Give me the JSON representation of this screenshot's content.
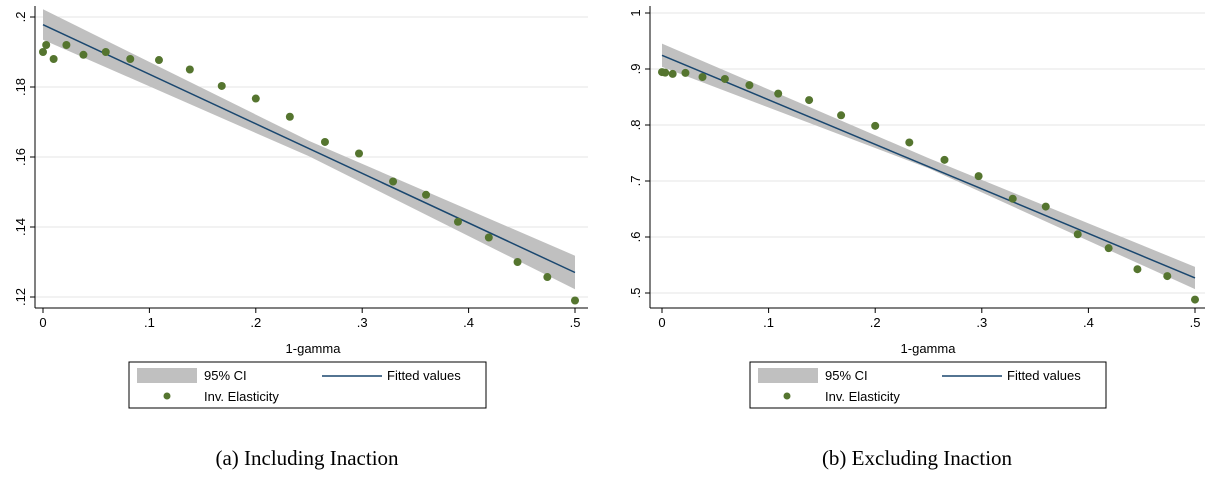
{
  "chart_data": [
    {
      "type": "scatter",
      "caption": "(a) Including Inaction",
      "xlabel": "1-gamma",
      "ylabel": "",
      "xlim": [
        0,
        0.5
      ],
      "ylim": [
        0.12,
        0.2
      ],
      "xticks": [
        0,
        0.1,
        0.2,
        0.3,
        0.4,
        0.5
      ],
      "xtick_labels": [
        "0",
        ".1",
        ".2",
        ".3",
        ".4",
        ".5"
      ],
      "yticks": [
        0.12,
        0.14,
        0.16,
        0.18,
        0.2
      ],
      "ytick_labels": [
        ".12",
        ".14",
        ".16",
        ".18",
        ".2"
      ],
      "grid": true,
      "legend_placement": "bottom",
      "legend": {
        "ci_label": "95% CI",
        "fit_label": "Fitted values",
        "scatter_label": "Inv. Elasticity"
      },
      "fit": {
        "x": [
          0,
          0.5
        ],
        "y": [
          0.1978,
          0.127
        ]
      },
      "ci_upper": {
        "x": [
          0,
          0.25,
          0.5
        ],
        "y": [
          0.2022,
          0.1646,
          0.1318
        ]
      },
      "ci_lower": {
        "x": [
          0,
          0.25,
          0.5
        ],
        "y": [
          0.1935,
          0.1602,
          0.1222
        ]
      },
      "points": {
        "x": [
          0.0,
          0.003,
          0.01,
          0.022,
          0.038,
          0.059,
          0.082,
          0.109,
          0.138,
          0.168,
          0.2,
          0.232,
          0.265,
          0.297,
          0.329,
          0.36,
          0.39,
          0.419,
          0.446,
          0.474,
          0.5
        ],
        "y": [
          0.19,
          0.192,
          0.188,
          0.192,
          0.1892,
          0.19,
          0.188,
          0.1877,
          0.185,
          0.1803,
          0.1767,
          0.1715,
          0.1643,
          0.161,
          0.153,
          0.1492,
          0.1415,
          0.137,
          0.13,
          0.1257,
          0.119
        ]
      },
      "colors": {
        "ci": "#c0c0c0",
        "fit": "#1a476f",
        "points": "#55752f",
        "grid": "#e6e6e6"
      }
    },
    {
      "type": "scatter",
      "caption": "(b) Excluding Inaction",
      "xlabel": "1-gamma",
      "ylabel": "",
      "xlim": [
        0,
        0.5
      ],
      "ylim": [
        0.5,
        1.0
      ],
      "xticks": [
        0,
        0.1,
        0.2,
        0.3,
        0.4,
        0.5
      ],
      "xtick_labels": [
        "0",
        ".1",
        ".2",
        ".3",
        ".4",
        ".5"
      ],
      "yticks": [
        0.5,
        0.6,
        0.7,
        0.8,
        0.9,
        1.0
      ],
      "ytick_labels": [
        ".5",
        ".6",
        ".7",
        ".8",
        ".9",
        "1"
      ],
      "grid": true,
      "legend_placement": "bottom",
      "legend": {
        "ci_label": "95% CI",
        "fit_label": "Fitted values",
        "scatter_label": "Inv. Elasticity"
      },
      "fit": {
        "x": [
          0,
          0.5
        ],
        "y": [
          0.9245,
          0.5268
        ]
      },
      "ci_upper": {
        "x": [
          0,
          0.25,
          0.5
        ],
        "y": [
          0.9453,
          0.7408,
          0.5467
        ]
      },
      "ci_lower": {
        "x": [
          0,
          0.25,
          0.5
        ],
        "y": [
          0.9037,
          0.7227,
          0.5069
        ]
      },
      "points": {
        "x": [
          0.0,
          0.003,
          0.01,
          0.022,
          0.038,
          0.059,
          0.082,
          0.109,
          0.138,
          0.168,
          0.2,
          0.232,
          0.265,
          0.297,
          0.329,
          0.36,
          0.39,
          0.419,
          0.446,
          0.474,
          0.5
        ],
        "y": [
          0.8945,
          0.8935,
          0.8912,
          0.893,
          0.8857,
          0.8822,
          0.8712,
          0.856,
          0.8445,
          0.8173,
          0.7985,
          0.7688,
          0.7378,
          0.7087,
          0.6684,
          0.6543,
          0.6049,
          0.5801,
          0.5425,
          0.5302,
          0.4882
        ]
      },
      "colors": {
        "ci": "#c0c0c0",
        "fit": "#1a476f",
        "points": "#55752f",
        "grid": "#e6e6e6"
      }
    }
  ]
}
